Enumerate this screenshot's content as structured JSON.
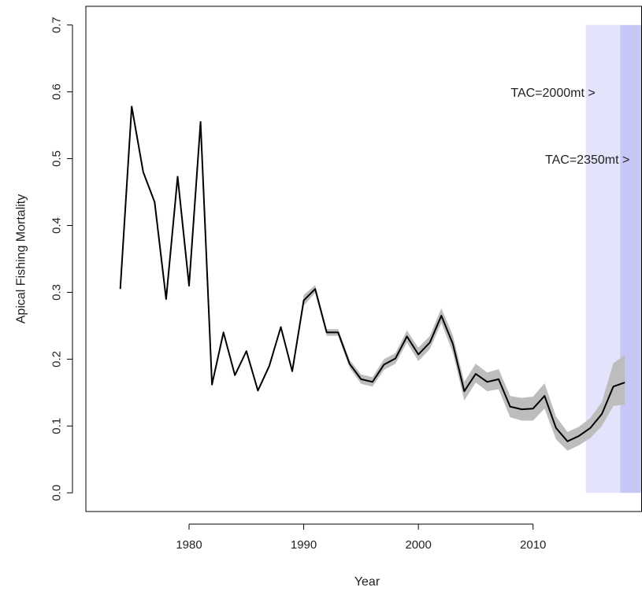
{
  "chart_data": {
    "type": "line",
    "xlabel": "Year",
    "ylabel": "Apical Fishing Mortality",
    "xlim": [
      1971.0,
      2019.5
    ],
    "ylim": [
      -0.028,
      0.728
    ],
    "xticks": [
      1980,
      1990,
      2000,
      2010
    ],
    "yticks": [
      0.0,
      0.1,
      0.2,
      0.3,
      0.4,
      0.5,
      0.6,
      0.7
    ],
    "ytick_labels": [
      "0.0",
      "0.1",
      "0.2",
      "0.3",
      "0.4",
      "0.5",
      "0.6",
      "0.7"
    ],
    "colors": {
      "line": "#000000",
      "ci_band": "#bdbdbd",
      "proj_light": "#e3e3fb",
      "proj_dark": "#c7c7f6"
    },
    "series": [
      {
        "x": [
          1974,
          1975,
          1976,
          1977,
          1978,
          1979,
          1980,
          1981,
          1982,
          1983,
          1984,
          1985,
          1986,
          1987,
          1988,
          1989,
          1990,
          1991,
          1992,
          1993,
          1994,
          1995,
          1996,
          1997,
          1998,
          1999,
          2000,
          2001,
          2002,
          2003,
          2004,
          2005,
          2006,
          2007,
          2008,
          2009,
          2010,
          2011,
          2012,
          2013,
          2014,
          2015,
          2016,
          2017,
          2018
        ],
        "y": [
          0.305,
          0.578,
          0.48,
          0.435,
          0.29,
          0.473,
          0.31,
          0.555,
          0.162,
          0.24,
          0.176,
          0.212,
          0.153,
          0.19,
          0.248,
          0.182,
          0.288,
          0.305,
          0.24,
          0.24,
          0.193,
          0.17,
          0.166,
          0.192,
          0.201,
          0.234,
          0.207,
          0.225,
          0.265,
          0.223,
          0.152,
          0.178,
          0.166,
          0.17,
          0.129,
          0.125,
          0.126,
          0.145,
          0.097,
          0.077,
          0.085,
          0.097,
          0.118,
          0.159,
          0.165
        ],
        "lower": [
          0.305,
          0.578,
          0.48,
          0.435,
          0.29,
          0.473,
          0.31,
          0.555,
          0.162,
          0.24,
          0.176,
          0.212,
          0.153,
          0.19,
          0.248,
          0.182,
          0.28,
          0.299,
          0.235,
          0.235,
          0.187,
          0.163,
          0.159,
          0.184,
          0.193,
          0.225,
          0.197,
          0.215,
          0.254,
          0.21,
          0.138,
          0.165,
          0.152,
          0.155,
          0.113,
          0.108,
          0.108,
          0.126,
          0.08,
          0.063,
          0.071,
          0.082,
          0.1,
          0.13,
          0.132
        ],
        "upper": [
          0.305,
          0.578,
          0.48,
          0.435,
          0.29,
          0.473,
          0.31,
          0.555,
          0.162,
          0.24,
          0.176,
          0.212,
          0.153,
          0.19,
          0.248,
          0.182,
          0.296,
          0.311,
          0.245,
          0.245,
          0.199,
          0.177,
          0.173,
          0.2,
          0.209,
          0.243,
          0.217,
          0.235,
          0.276,
          0.236,
          0.166,
          0.193,
          0.18,
          0.185,
          0.145,
          0.142,
          0.144,
          0.164,
          0.114,
          0.091,
          0.099,
          0.112,
          0.136,
          0.194,
          0.206
        ]
      }
    ],
    "projection_regions": [
      {
        "x_start": 2014.6,
        "x_end": 2017.6,
        "y_top": 0.7,
        "shade": "light"
      },
      {
        "x_start": 2017.6,
        "x_end": 2019.5,
        "y_top": 0.7,
        "shade": "dark"
      }
    ],
    "annotations": [
      {
        "text": "TAC=2000mt >",
        "x": 2014.6,
        "y": 0.598
      },
      {
        "text": "TAC=2350mt >",
        "x": 2017.6,
        "y": 0.498
      }
    ]
  }
}
